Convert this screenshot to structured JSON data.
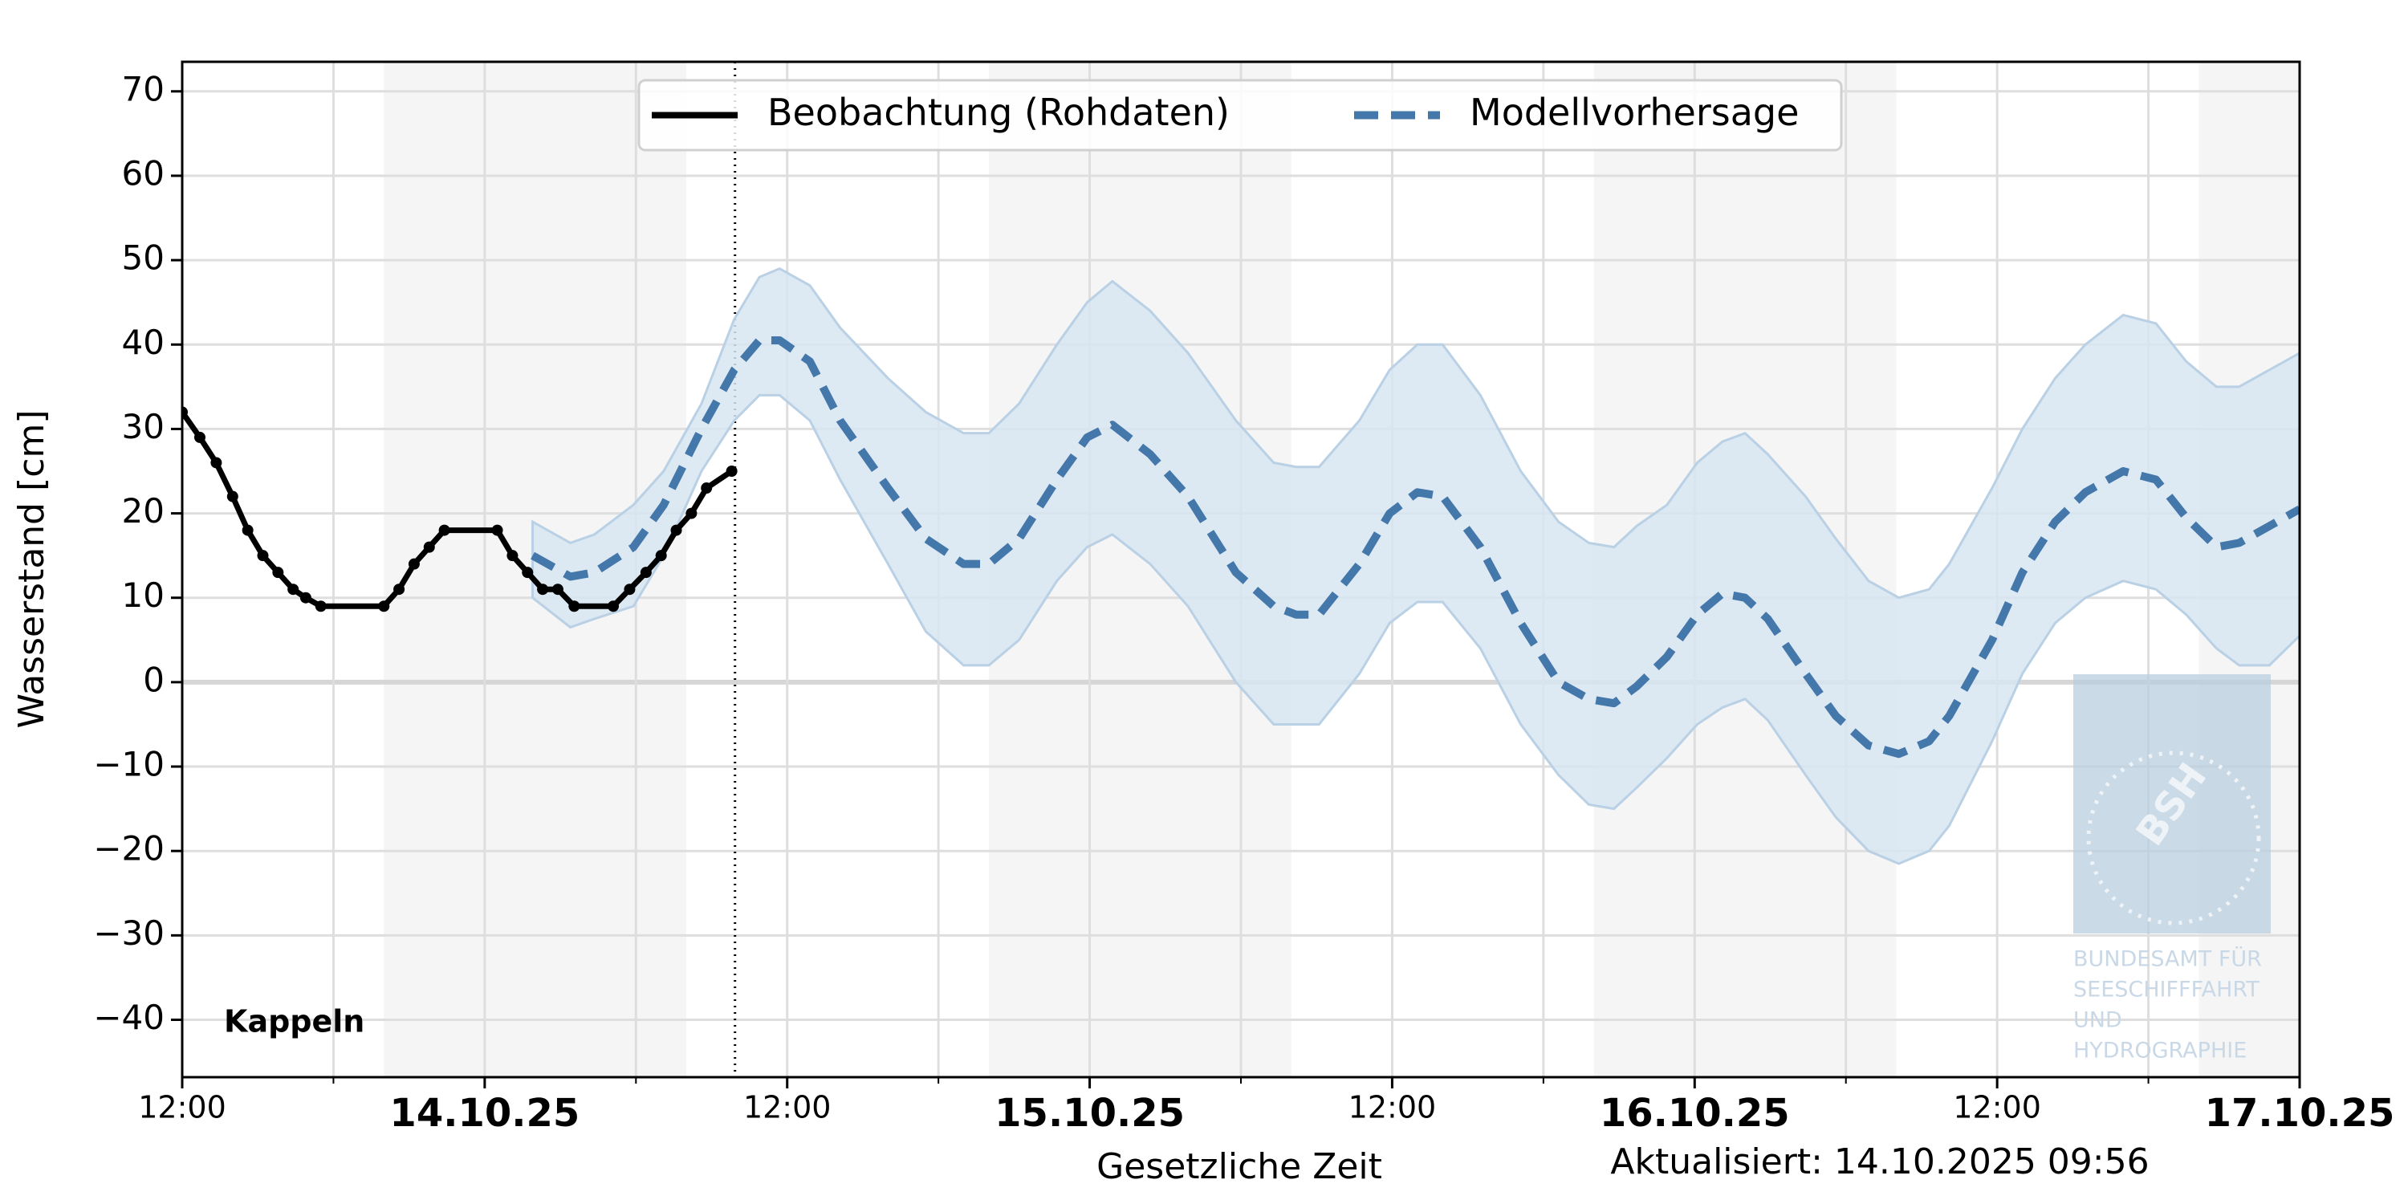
{
  "chart_data": {
    "type": "line",
    "station": "Kappeln",
    "ylabel": "Wasserstand [cm]",
    "xlabel": "Gesetzliche Zeit",
    "updated": "Aktualisiert: 14.10.2025 09:56",
    "logo_text": [
      "BSH",
      "BUNDESAMT FÜR",
      "SEESCHIFFFAHRT",
      "UND",
      "HYDROGRAPHIE"
    ],
    "xlim": [
      -12,
      72
    ],
    "ylim": [
      -46.8,
      73.5
    ],
    "xticks": [
      {
        "value": -12,
        "label": "12:00"
      },
      {
        "value": 0,
        "label": "14.10.25"
      },
      {
        "value": 12,
        "label": "12:00"
      },
      {
        "value": 24,
        "label": "15.10.25"
      },
      {
        "value": 36,
        "label": "12:00"
      },
      {
        "value": 48,
        "label": "16.10.25"
      },
      {
        "value": 60,
        "label": "12:00"
      },
      {
        "value": 72,
        "label": "17.10.25"
      }
    ],
    "xticks_minor": [
      -6,
      6,
      18,
      30,
      42,
      54,
      66
    ],
    "yticks": [
      {
        "value": -40,
        "label": "−40"
      },
      {
        "value": -30,
        "label": "−30"
      },
      {
        "value": -20,
        "label": "−20"
      },
      {
        "value": -10,
        "label": "−10"
      },
      0,
      10,
      20,
      30,
      40,
      50,
      60,
      70
    ],
    "grid": true,
    "night_shading": [
      [
        -4,
        8
      ],
      [
        20,
        32
      ],
      [
        44,
        56
      ],
      [
        68,
        80
      ]
    ],
    "now_line": 9.93,
    "legend": "upper center",
    "series": [
      {
        "name": "Beobachtung (Rohdaten)",
        "color": "#000000",
        "style": "solid",
        "marker": true,
        "x": [
          -12,
          -11.3,
          -10.65,
          -10,
          -9.4,
          -8.8,
          -8.2,
          -7.6,
          -7.1,
          -6.5,
          -4,
          -3.4,
          -2.8,
          -2.2,
          -1.6,
          0.5,
          1.1,
          1.7,
          2.3,
          2.9,
          3.55,
          5.1,
          5.75,
          6.4,
          7,
          7.6,
          8.2,
          8.8,
          9.8
        ],
        "values": [
          32,
          29,
          26,
          22,
          18,
          15,
          13,
          11,
          10,
          9,
          9,
          11,
          14,
          16,
          18,
          18,
          15,
          13,
          11,
          11,
          9,
          9,
          11,
          13,
          15,
          18,
          20,
          23,
          25
        ]
      },
      {
        "name": "Modellvorhersage",
        "color": "#4477aa",
        "style": "dashed",
        "band_color": "#d7e5f1",
        "x": [
          1.9,
          3.4,
          4.35,
          5.9,
          7.1,
          8.6,
          9.9,
          10.9,
          11.7,
          12.9,
          14.1,
          16,
          17.5,
          19,
          20,
          21.2,
          22.7,
          23.9,
          24.9,
          26.4,
          27.9,
          29.8,
          31.3,
          32.2,
          33.1,
          34.7,
          35.9,
          37,
          38,
          39.5,
          41.1,
          42.6,
          43.8,
          44.8,
          45.7,
          46.9,
          48.1,
          49.1,
          50,
          50.9,
          52.4,
          53.6,
          54.9,
          56.1,
          57.3,
          58.1,
          59.8,
          61,
          62.3,
          63.5,
          65,
          66.3,
          67.5,
          68.7,
          69.6,
          70.8,
          72
        ],
        "values": [
          15,
          12.5,
          13,
          16,
          21,
          30,
          37,
          40.5,
          40.5,
          38,
          31,
          23,
          17,
          14,
          14,
          17,
          24,
          29,
          30.5,
          27,
          22,
          13,
          9,
          8,
          8,
          14,
          20,
          22.5,
          22,
          16,
          7,
          0,
          -2,
          -2.5,
          -0.5,
          3,
          8,
          10.5,
          10,
          7.5,
          1,
          -4,
          -7.5,
          -8.5,
          -7,
          -4,
          5,
          13,
          19,
          22.5,
          25,
          24,
          19.5,
          16,
          16.5,
          18.5,
          20.5
        ],
        "upper": [
          19,
          16.5,
          17.5,
          21,
          25,
          33,
          43,
          48,
          49,
          47,
          42,
          36,
          32,
          29.5,
          29.5,
          33,
          40,
          45,
          47.5,
          44,
          39,
          31,
          26,
          25.5,
          25.5,
          31,
          37,
          40,
          40,
          34,
          25,
          19,
          16.5,
          16,
          18.5,
          21,
          26,
          28.5,
          29.5,
          27,
          22,
          17,
          12,
          10,
          11,
          14,
          23,
          30,
          36,
          40,
          43.5,
          42.5,
          38,
          35,
          35,
          37,
          39
        ],
        "lower": [
          10,
          6.5,
          7.5,
          9,
          15,
          25,
          31,
          34,
          34,
          31,
          24,
          14,
          6,
          2,
          2,
          5,
          12,
          16,
          17.5,
          14,
          9,
          0,
          -5,
          -5,
          -5,
          1,
          7,
          9.5,
          9.5,
          4,
          -5,
          -11,
          -14.5,
          -15,
          -12.5,
          -9,
          -5,
          -3,
          -2,
          -4.5,
          -11,
          -16,
          -20,
          -21.5,
          -20,
          -17,
          -7,
          1,
          7,
          10,
          12,
          11,
          8,
          4,
          2,
          2,
          5.5
        ]
      }
    ]
  }
}
